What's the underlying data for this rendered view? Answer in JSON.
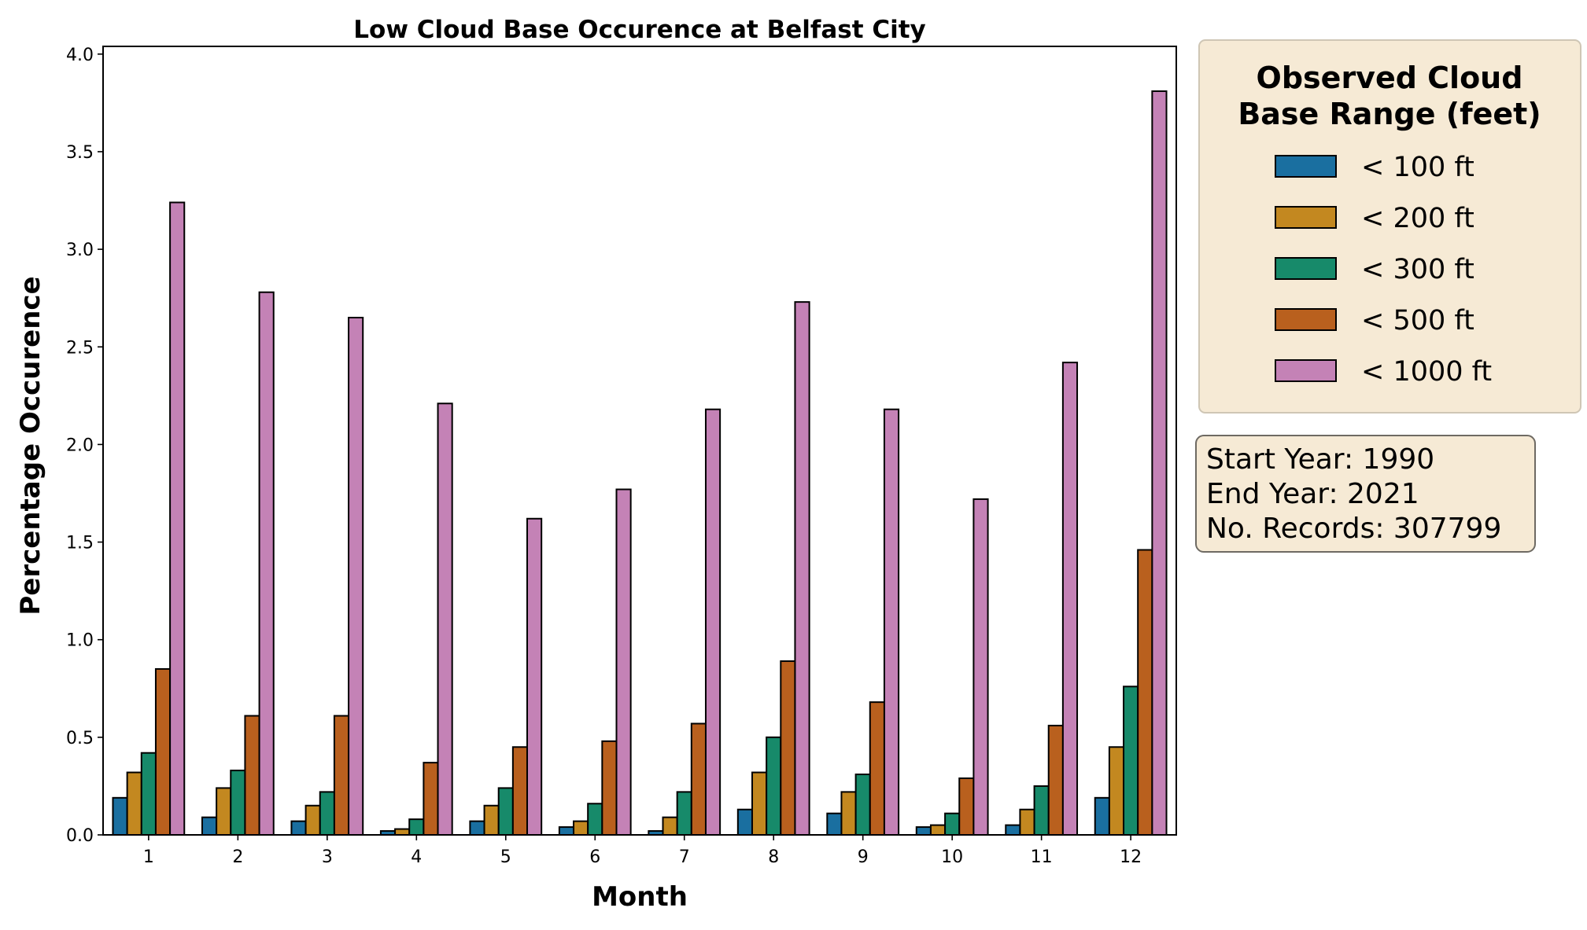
{
  "chart_data": {
    "type": "bar",
    "title": "Low Cloud Base Occurence at Belfast City",
    "xlabel": "Month",
    "ylabel": "Percentage Occurence",
    "categories": [
      "1",
      "2",
      "3",
      "4",
      "5",
      "6",
      "7",
      "8",
      "9",
      "10",
      "11",
      "12"
    ],
    "ylim": [
      0,
      4.0
    ],
    "yticks": [
      "0.0",
      "0.5",
      "1.0",
      "1.5",
      "2.0",
      "2.5",
      "3.0",
      "3.5",
      "4.0"
    ],
    "grid": false,
    "legend": {
      "title": "Observed Cloud Base Range (feet)",
      "title_lines": [
        "Observed Cloud",
        "Base Range (feet)"
      ],
      "placement": "outside-right"
    },
    "series": [
      {
        "name": "< 100 ft",
        "color": "#1a6fa0",
        "values": [
          0.19,
          0.09,
          0.07,
          0.02,
          0.07,
          0.04,
          0.02,
          0.13,
          0.11,
          0.04,
          0.05,
          0.19
        ]
      },
      {
        "name": "< 200 ft",
        "color": "#c38820",
        "values": [
          0.32,
          0.24,
          0.15,
          0.03,
          0.15,
          0.07,
          0.09,
          0.32,
          0.22,
          0.05,
          0.13,
          0.45
        ]
      },
      {
        "name": "< 300 ft",
        "color": "#178a6a",
        "values": [
          0.42,
          0.33,
          0.22,
          0.08,
          0.24,
          0.16,
          0.22,
          0.5,
          0.31,
          0.11,
          0.25,
          0.76
        ]
      },
      {
        "name": "< 500 ft",
        "color": "#b9601e",
        "values": [
          0.85,
          0.61,
          0.61,
          0.37,
          0.45,
          0.48,
          0.57,
          0.89,
          0.68,
          0.29,
          0.56,
          1.46
        ]
      },
      {
        "name": "< 1000 ft",
        "color": "#c482b6",
        "values": [
          3.24,
          2.78,
          2.65,
          2.21,
          1.62,
          1.77,
          2.18,
          2.73,
          2.18,
          1.72,
          2.42,
          3.81
        ]
      }
    ],
    "annotation": [
      "Start Year: 1990",
      "End Year: 2021",
      "No. Records: 307799"
    ]
  }
}
